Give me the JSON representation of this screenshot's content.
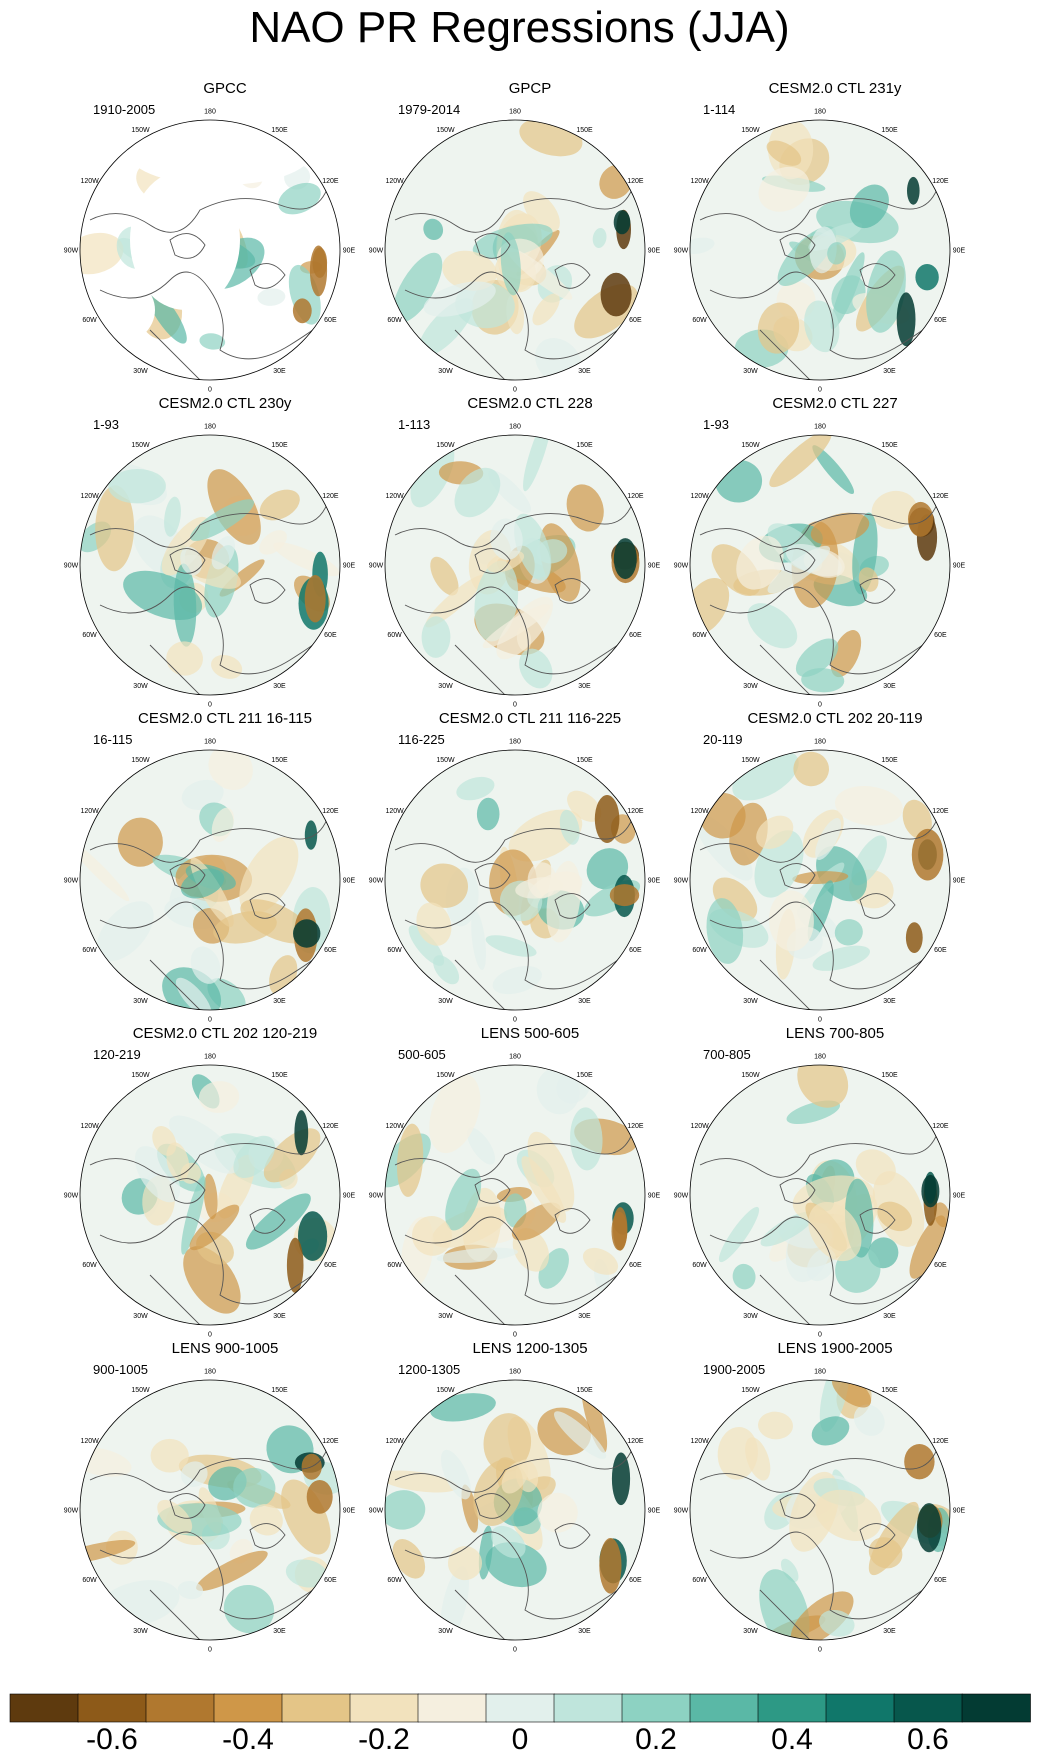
{
  "title": "NAO PR Regressions (JJA)",
  "lon_labels": [
    "180",
    "150E",
    "120E",
    "90E",
    "60E",
    "30E",
    "0",
    "30W",
    "60W",
    "90W",
    "120W",
    "150W"
  ],
  "panels": [
    {
      "title": "GPCC",
      "period": "1910-2005"
    },
    {
      "title": "GPCP",
      "period": "1979-2014"
    },
    {
      "title": "CESM2.0 CTL 231y",
      "period": "1-114"
    },
    {
      "title": "CESM2.0 CTL 230y",
      "period": "1-93"
    },
    {
      "title": "CESM2.0 CTL 228",
      "period": "1-113"
    },
    {
      "title": "CESM2.0 CTL 227",
      "period": "1-93"
    },
    {
      "title": "CESM2.0 CTL 211 16-115",
      "period": "16-115"
    },
    {
      "title": "CESM2.0 CTL 211 116-225",
      "period": "116-225"
    },
    {
      "title": "CESM2.0 CTL 202 20-119",
      "period": "20-119"
    },
    {
      "title": "CESM2.0 CTL 202 120-219",
      "period": "120-219"
    },
    {
      "title": "LENS 500-605",
      "period": "500-605"
    },
    {
      "title": "LENS 700-805",
      "period": "700-805"
    },
    {
      "title": "LENS 900-1005",
      "period": "900-1005"
    },
    {
      "title": "LENS 1200-1305",
      "period": "1200-1305"
    },
    {
      "title": "LENS 1900-2005",
      "period": "1900-2005"
    }
  ],
  "colorbar": {
    "colors": [
      "#5e3a0e",
      "#8d5a19",
      "#b0782f",
      "#cf9748",
      "#e4c587",
      "#f2e2bd",
      "#f5efdf",
      "#e2f0ec",
      "#bfe5dc",
      "#8dd2c2",
      "#5ab8a6",
      "#2d9985",
      "#10776a",
      "#07574c",
      "#033b33"
    ],
    "labels": [
      "-0.6",
      "-0.4",
      "-0.2",
      "0",
      "0.2",
      "0.4",
      "0.6"
    ]
  }
}
